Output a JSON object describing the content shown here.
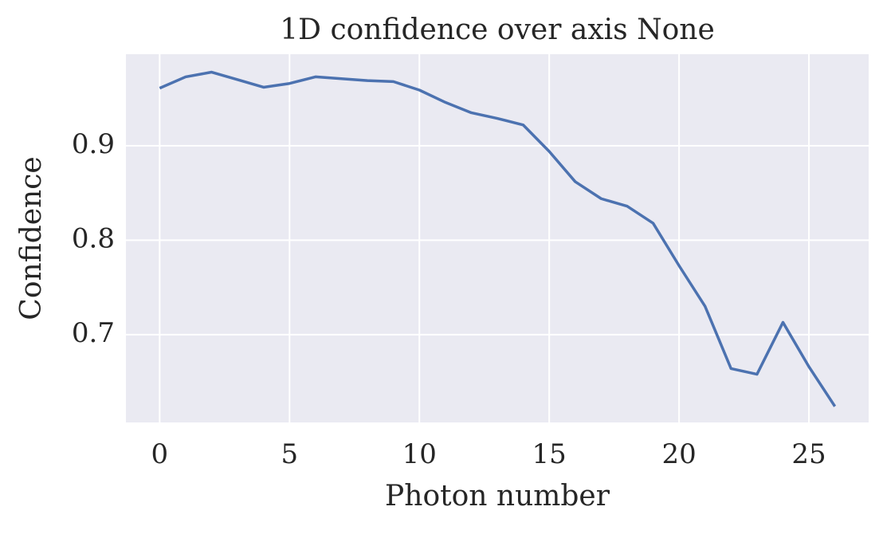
{
  "chart_data": {
    "type": "line",
    "title": "1D confidence over axis None",
    "x_label": "Photon number",
    "y_label": "Confidence",
    "x": [
      0,
      1,
      2,
      3,
      4,
      5,
      6,
      7,
      8,
      9,
      10,
      11,
      12,
      13,
      14,
      15,
      16,
      17,
      18,
      19,
      20,
      21,
      22,
      23,
      24,
      25,
      26
    ],
    "series": [
      {
        "color": "#4c72b0",
        "values": [
          0.961,
          0.973,
          0.978,
          0.97,
          0.962,
          0.966,
          0.973,
          0.971,
          0.969,
          0.968,
          0.959,
          0.946,
          0.935,
          0.929,
          0.922,
          0.894,
          0.862,
          0.844,
          0.836,
          0.818,
          0.773,
          0.73,
          0.664,
          0.658,
          0.713,
          0.666,
          0.624
        ]
      }
    ],
    "xlim": [
      -1.3,
      27.3
    ],
    "xticks": [
      0,
      5,
      10,
      15,
      20,
      25
    ],
    "ylim": [
      0.607,
      0.997
    ],
    "yticks": [
      0.7,
      0.8,
      0.9
    ],
    "grid": true
  }
}
